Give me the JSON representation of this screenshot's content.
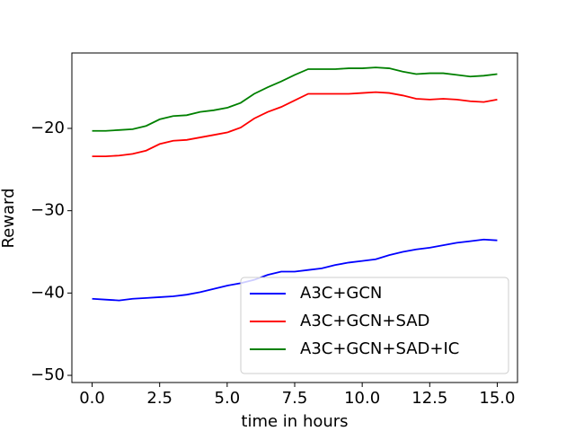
{
  "chart_data": {
    "type": "line",
    "x_label": "time in hours",
    "y_label": "Reward",
    "x": [
      0,
      0.5,
      1,
      1.5,
      2,
      2.5,
      3,
      3.5,
      4,
      4.5,
      5,
      5.5,
      6,
      6.5,
      7,
      7.5,
      8,
      8.5,
      9,
      9.5,
      10,
      10.5,
      11,
      11.5,
      12,
      12.5,
      13,
      13.5,
      14,
      14.5,
      15
    ],
    "series": [
      {
        "name": "A3C+GCN",
        "color": "#0000ff",
        "values": [
          -40.7,
          -40.8,
          -40.9,
          -40.7,
          -40.6,
          -40.5,
          -40.4,
          -40.2,
          -39.9,
          -39.5,
          -39.1,
          -38.8,
          -38.4,
          -37.8,
          -37.4,
          -37.4,
          -37.2,
          -37.0,
          -36.6,
          -36.3,
          -36.1,
          -35.9,
          -35.4,
          -35.0,
          -34.7,
          -34.5,
          -34.2,
          -33.9,
          -33.7,
          -33.5,
          -33.6
        ]
      },
      {
        "name": "A3C+GCN+SAD",
        "color": "#ff0000",
        "values": [
          -23.4,
          -23.4,
          -23.3,
          -23.1,
          -22.7,
          -21.9,
          -21.5,
          -21.4,
          -21.1,
          -20.8,
          -20.5,
          -19.9,
          -18.8,
          -18.0,
          -17.4,
          -16.6,
          -15.8,
          -15.8,
          -15.8,
          -15.8,
          -15.7,
          -15.6,
          -15.7,
          -16.0,
          -16.4,
          -16.5,
          -16.4,
          -16.5,
          -16.7,
          -16.8,
          -16.5
        ]
      },
      {
        "name": "A3C+GCN+SAD+IC",
        "color": "#008000",
        "values": [
          -20.3,
          -20.3,
          -20.2,
          -20.1,
          -19.7,
          -18.9,
          -18.5,
          -18.4,
          -18.0,
          -17.8,
          -17.5,
          -16.9,
          -15.8,
          -15.0,
          -14.3,
          -13.5,
          -12.8,
          -12.8,
          -12.8,
          -12.7,
          -12.7,
          -12.6,
          -12.7,
          -13.1,
          -13.4,
          -13.3,
          -13.3,
          -13.5,
          -13.7,
          -13.6,
          -13.4
        ]
      }
    ],
    "xlim": [
      -0.75,
      15.75
    ],
    "xticks": [
      {
        "value": 0,
        "label": "0.0"
      },
      2.5,
      {
        "value": 5,
        "label": "5.0"
      },
      7.5,
      {
        "value": 10,
        "label": "10.0"
      },
      12.5,
      {
        "value": 15,
        "label": "15.0"
      }
    ],
    "ylim": [
      -50.87,
      -10.84
    ],
    "yticks": [
      {
        "value": -50,
        "label": "−50"
      },
      {
        "value": -40,
        "label": "−40"
      },
      {
        "value": -30,
        "label": "−30"
      },
      {
        "value": -20,
        "label": "−20"
      }
    ],
    "legend": "lower right"
  }
}
